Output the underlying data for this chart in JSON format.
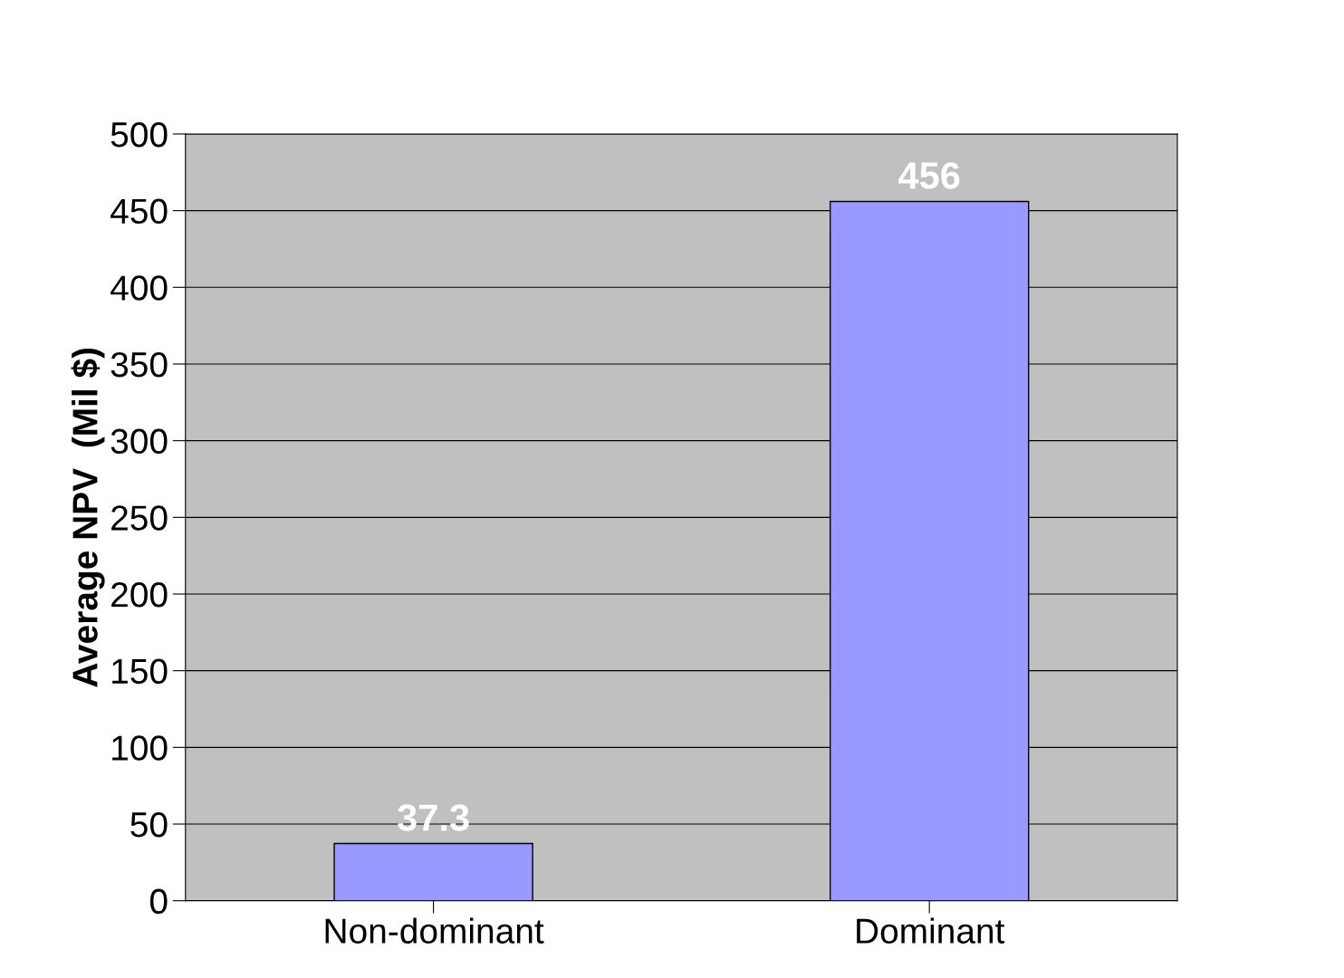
{
  "chart_data": {
    "type": "bar",
    "ylabel": "Average NPV  (Mil $)",
    "categories": [
      "Non-dominant",
      "Dominant"
    ],
    "values": [
      37.3,
      456
    ],
    "color": "#9999ff",
    "ylim": [
      0,
      500
    ],
    "yticks": [
      0,
      50,
      100,
      150,
      200,
      250,
      300,
      350,
      400,
      450,
      500
    ],
    "grid": "y",
    "data_labels": true
  }
}
